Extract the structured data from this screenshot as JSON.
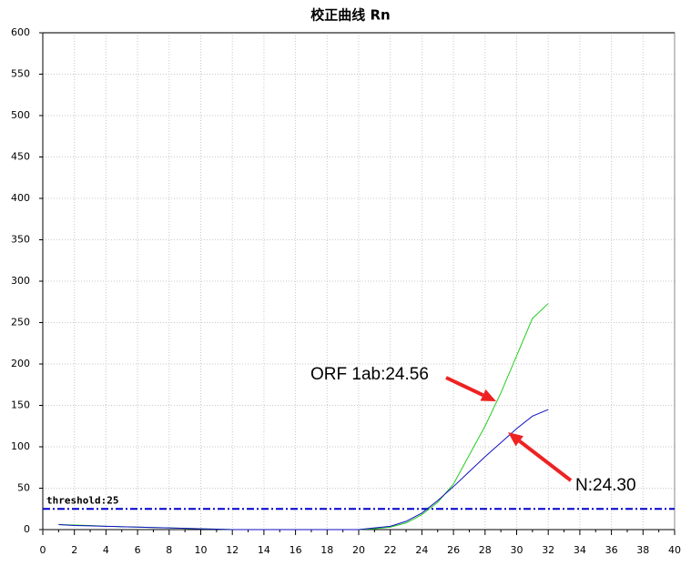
{
  "chart_data": {
    "type": "line",
    "title": "校正曲线 Rn",
    "x": [
      1,
      2,
      3,
      4,
      5,
      6,
      7,
      8,
      9,
      10,
      11,
      12,
      13,
      14,
      15,
      16,
      17,
      18,
      19,
      20,
      21,
      22,
      23,
      24,
      25,
      26,
      27,
      28,
      29,
      30,
      31,
      32
    ],
    "series": [
      {
        "name": "ORF 1ab",
        "color": "#22cc22",
        "values": [
          6,
          5.5,
          5,
          4,
          3.5,
          3,
          2.5,
          2,
          1.5,
          1,
          0.5,
          0,
          0,
          0,
          0,
          0,
          0,
          0,
          0,
          0,
          1,
          3,
          8,
          18,
          33,
          55,
          90,
          125,
          165,
          210,
          255,
          273
        ]
      },
      {
        "name": "N",
        "color": "#1010c0",
        "values": [
          6,
          5,
          4.5,
          4,
          3.5,
          3,
          2.5,
          2,
          1.5,
          1,
          0.5,
          0,
          0,
          0,
          0,
          0,
          0,
          0,
          0,
          0,
          2,
          4,
          10,
          20,
          35,
          52,
          70,
          88,
          105,
          122,
          137,
          145
        ]
      }
    ],
    "threshold": {
      "value": 25,
      "label": "threshold:25",
      "color": "#0000cc",
      "label_color": "#c8a000"
    },
    "annotations": [
      "ORF 1ab:24.56",
      "N:24.30"
    ],
    "xlim": [
      0,
      40
    ],
    "xticks": [
      0,
      2,
      4,
      6,
      8,
      10,
      12,
      14,
      16,
      18,
      20,
      22,
      24,
      26,
      28,
      30,
      32,
      34,
      36,
      38,
      40
    ],
    "ylim": [
      0,
      600
    ],
    "yticks": [
      0,
      50,
      100,
      150,
      200,
      250,
      300,
      350,
      400,
      450,
      500,
      550,
      600
    ],
    "grid": true
  }
}
